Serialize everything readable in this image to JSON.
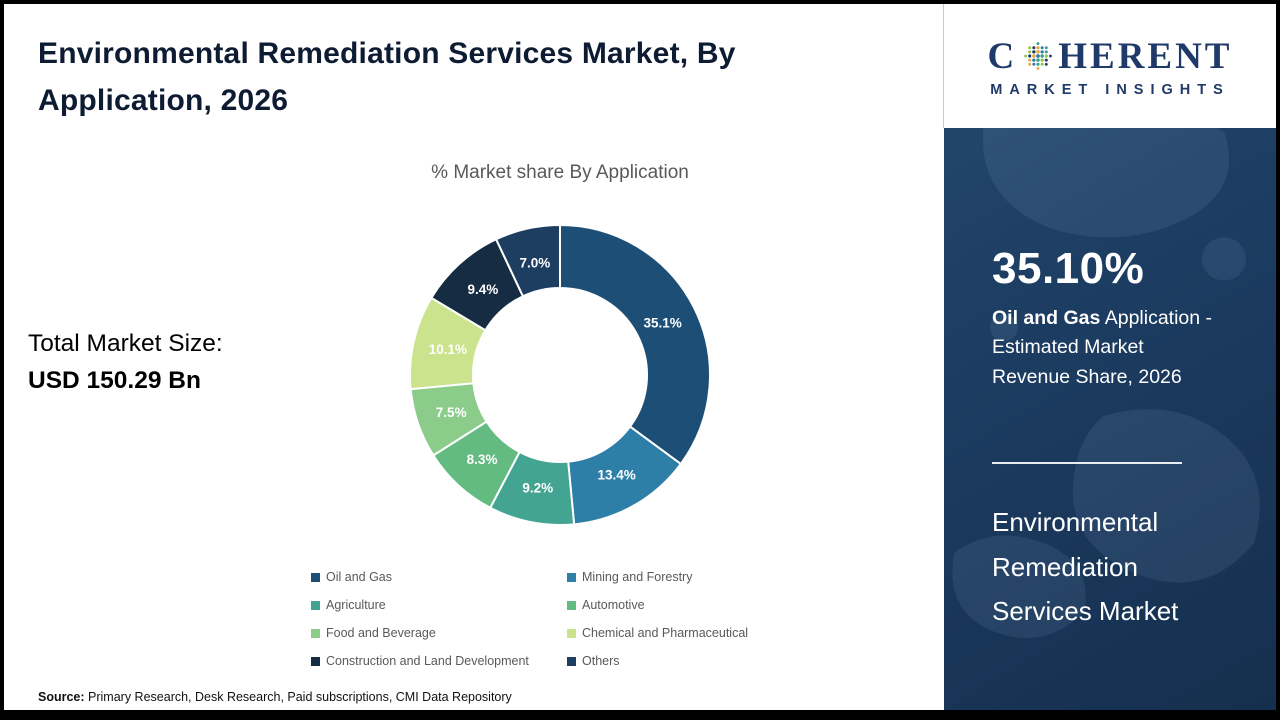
{
  "page": {
    "title": "Environmental Remediation Services Market, By Application, 2026",
    "source_label": "Source:",
    "source_text": "Primary Research, Desk Research, Paid subscriptions, CMI Data Repository"
  },
  "total_market": {
    "label": "Total Market Size:",
    "value": "USD 150.29 Bn"
  },
  "logo": {
    "first_letter": "C",
    "rest": "HERENT",
    "subtitle": "MARKET INSIGHTS"
  },
  "sidebar": {
    "stat_value": "35.10%",
    "stat_bold": "Oil and Gas",
    "stat_rest": " Application - Estimated Market Revenue Share, 2026",
    "market_name": "Environmental Remediation Services Market"
  },
  "chart_data": {
    "type": "pie",
    "donut": true,
    "title": "% Market share By Application",
    "categories": [
      "Oil and Gas",
      "Mining and Forestry",
      "Agriculture",
      "Automotive",
      "Food and Beverage",
      "Chemical and Pharmaceutical",
      "Construction and Land Development",
      "Others"
    ],
    "values": [
      35.1,
      13.4,
      9.2,
      8.3,
      7.5,
      10.1,
      9.4,
      7.0
    ],
    "value_labels": [
      "35.1%",
      "13.4%",
      "9.2%",
      "8.3%",
      "7.5%",
      "10.1%",
      "9.4%",
      "7.0%"
    ],
    "colors": [
      "#1d4f76",
      "#2e7fa8",
      "#43a491",
      "#63bb82",
      "#8ccc8a",
      "#cbe38c",
      "#152c42",
      "#1d3d61"
    ],
    "label_color": "#ffffff",
    "legend_position": "bottom",
    "start_angle_deg": -90,
    "direction": "clockwise"
  }
}
